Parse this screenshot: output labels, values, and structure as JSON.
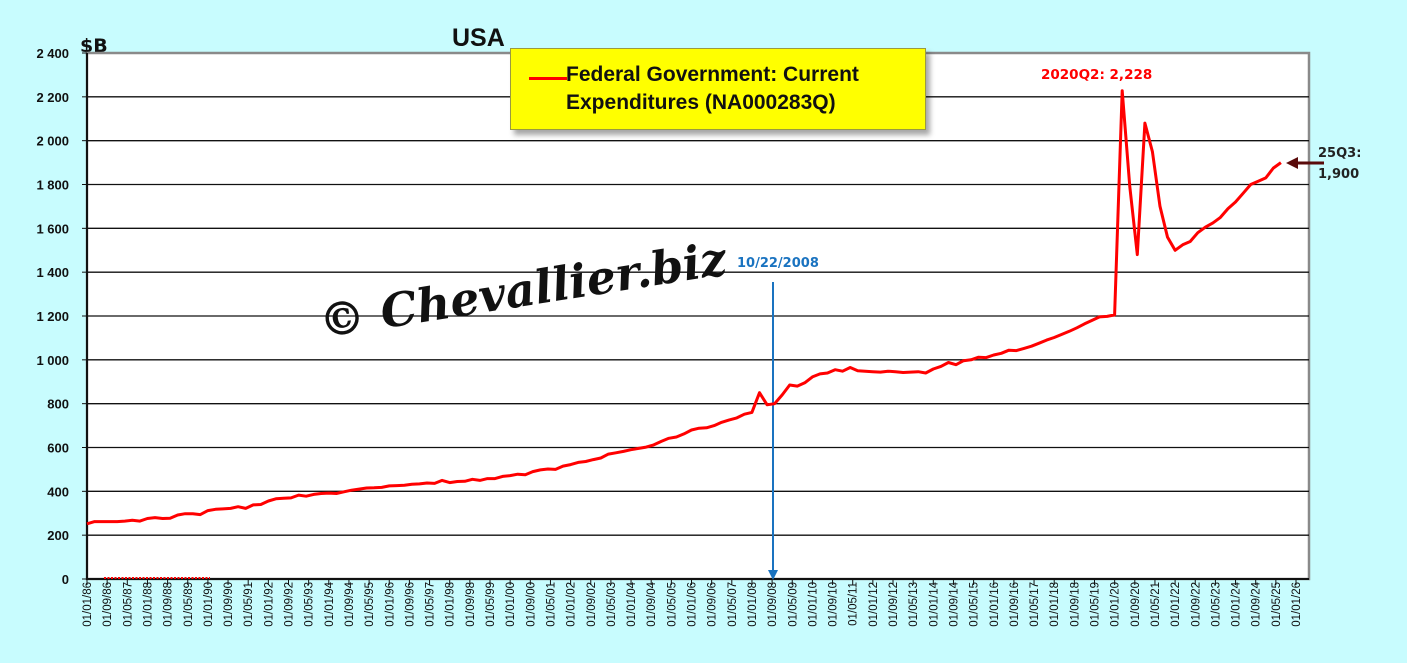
{
  "chart_data": {
    "type": "line",
    "title": "USA",
    "ylabel": "$B",
    "xlabel": "",
    "ylim": [
      0,
      2400
    ],
    "y_ticks": [
      0,
      200,
      400,
      600,
      800,
      1000,
      1200,
      1400,
      1600,
      1800,
      2000,
      2200,
      2400
    ],
    "y_tick_labels": [
      "0",
      "200",
      "400",
      "600",
      "800",
      "1 000",
      "1 200",
      "1 400",
      "1 600",
      "1 800",
      "2 000",
      "2 200",
      "2 400"
    ],
    "grid": true,
    "x_tick_labels": [
      "01/01/86",
      "01/09/86",
      "01/05/87",
      "01/01/88",
      "01/09/88",
      "01/05/89",
      "01/01/90",
      "01/09/90",
      "01/05/91",
      "01/01/92",
      "01/09/92",
      "01/05/93",
      "01/01/94",
      "01/09/94",
      "01/05/95",
      "01/01/96",
      "01/09/96",
      "01/05/97",
      "01/01/98",
      "01/09/98",
      "01/05/99",
      "01/01/00",
      "01/09/00",
      "01/05/01",
      "01/01/02",
      "01/09/02",
      "01/05/03",
      "01/01/04",
      "01/09/04",
      "01/05/05",
      "01/01/06",
      "01/09/06",
      "01/05/07",
      "01/01/08",
      "01/09/08",
      "01/05/09",
      "01/01/10",
      "01/09/10",
      "01/05/11",
      "01/01/12",
      "01/09/12",
      "01/05/13",
      "01/01/14",
      "01/09/14",
      "01/05/15",
      "01/01/16",
      "01/09/16",
      "01/05/17",
      "01/01/18",
      "01/09/18",
      "01/05/19",
      "01/01/20",
      "01/09/20",
      "01/05/21",
      "01/01/22",
      "01/09/22",
      "01/05/23",
      "01/01/24",
      "01/09/24",
      "01/05/25",
      "01/01/26"
    ],
    "legend": {
      "position": "top-center",
      "label": "Federal Government: Current Expenditures (NA000283Q)",
      "color": "#ff0000"
    },
    "series": [
      {
        "name": "Federal Government: Current Expenditures (NA000283Q)",
        "color": "#ff0000",
        "x": [
          "1986Q1",
          "1986Q2",
          "1986Q3",
          "1986Q4",
          "1987Q1",
          "1987Q2",
          "1987Q3",
          "1987Q4",
          "1988Q1",
          "1988Q2",
          "1988Q3",
          "1988Q4",
          "1989Q1",
          "1989Q2",
          "1989Q3",
          "1989Q4",
          "1990Q1",
          "1990Q2",
          "1990Q3",
          "1990Q4",
          "1991Q1",
          "1991Q2",
          "1991Q3",
          "1991Q4",
          "1992Q1",
          "1992Q2",
          "1992Q3",
          "1992Q4",
          "1993Q1",
          "1993Q2",
          "1993Q3",
          "1993Q4",
          "1994Q1",
          "1994Q2",
          "1994Q3",
          "1994Q4",
          "1995Q1",
          "1995Q2",
          "1995Q3",
          "1995Q4",
          "1996Q1",
          "1996Q2",
          "1996Q3",
          "1996Q4",
          "1997Q1",
          "1997Q2",
          "1997Q3",
          "1997Q4",
          "1998Q1",
          "1998Q2",
          "1998Q3",
          "1998Q4",
          "1999Q1",
          "1999Q2",
          "1999Q3",
          "1999Q4",
          "2000Q1",
          "2000Q2",
          "2000Q3",
          "2000Q4",
          "2001Q1",
          "2001Q2",
          "2001Q3",
          "2001Q4",
          "2002Q1",
          "2002Q2",
          "2002Q3",
          "2002Q4",
          "2003Q1",
          "2003Q2",
          "2003Q3",
          "2003Q4",
          "2004Q1",
          "2004Q2",
          "2004Q3",
          "2004Q4",
          "2005Q1",
          "2005Q2",
          "2005Q3",
          "2005Q4",
          "2006Q1",
          "2006Q2",
          "2006Q3",
          "2006Q4",
          "2007Q1",
          "2007Q2",
          "2007Q3",
          "2007Q4",
          "2008Q1",
          "2008Q2",
          "2008Q3",
          "2008Q4",
          "2009Q1",
          "2009Q2",
          "2009Q3",
          "2009Q4",
          "2010Q1",
          "2010Q2",
          "2010Q3",
          "2010Q4",
          "2011Q1",
          "2011Q2",
          "2011Q3",
          "2011Q4",
          "2012Q1",
          "2012Q2",
          "2012Q3",
          "2012Q4",
          "2013Q1",
          "2013Q2",
          "2013Q3",
          "2013Q4",
          "2014Q1",
          "2014Q2",
          "2014Q3",
          "2014Q4",
          "2015Q1",
          "2015Q2",
          "2015Q3",
          "2015Q4",
          "2016Q1",
          "2016Q2",
          "2016Q3",
          "2016Q4",
          "2017Q1",
          "2017Q2",
          "2017Q3",
          "2017Q4",
          "2018Q1",
          "2018Q2",
          "2018Q3",
          "2018Q4",
          "2019Q1",
          "2019Q2",
          "2019Q3",
          "2019Q4",
          "2020Q1",
          "2020Q2",
          "2020Q3",
          "2020Q4",
          "2021Q1",
          "2021Q2",
          "2021Q3",
          "2021Q4",
          "2022Q1",
          "2022Q2",
          "2022Q3",
          "2022Q4",
          "2023Q1",
          "2023Q2",
          "2023Q3",
          "2023Q4",
          "2024Q1",
          "2024Q2",
          "2024Q3",
          "2024Q4",
          "2025Q1",
          "2025Q2",
          "2025Q3"
        ],
        "values": [
          252,
          262,
          262,
          262,
          262,
          264,
          268,
          264,
          276,
          280,
          276,
          277,
          292,
          298,
          298,
          294,
          312,
          318,
          320,
          322,
          330,
          322,
          338,
          340,
          356,
          366,
          368,
          370,
          383,
          378,
          386,
          390,
          392,
          390,
          398,
          405,
          410,
          415,
          416,
          418,
          425,
          426,
          428,
          432,
          434,
          438,
          436,
          450,
          440,
          445,
          446,
          455,
          450,
          458,
          458,
          468,
          472,
          478,
          476,
          490,
          498,
          502,
          500,
          515,
          522,
          532,
          536,
          545,
          552,
          570,
          576,
          582,
          590,
          596,
          602,
          612,
          628,
          642,
          648,
          662,
          680,
          688,
          690,
          700,
          715,
          726,
          735,
          752,
          760,
          850,
          795,
          800,
          840,
          885,
          880,
          895,
          922,
          936,
          940,
          955,
          948,
          965,
          950,
          948,
          946,
          944,
          948,
          946,
          942,
          944,
          946,
          940,
          958,
          970,
          988,
          978,
          996,
          1000,
          1012,
          1010,
          1022,
          1030,
          1044,
          1042,
          1052,
          1062,
          1076,
          1090,
          1102,
          1116,
          1130,
          1146,
          1164,
          1180,
          1196,
          1198,
          1205,
          2228,
          1790,
          1480,
          2080,
          1950,
          1700,
          1560,
          1500,
          1525,
          1540,
          1580,
          1605,
          1625,
          1650,
          1690,
          1720,
          1760,
          1800,
          1815,
          1830,
          1875,
          1900
        ]
      }
    ],
    "annotations": {
      "peak_label": "2020Q2: 2,228",
      "peak_period": "2020Q2",
      "peak_value": 2228,
      "last_label_line1": "25Q3:",
      "last_label_line2": "1,900",
      "last_period": "2025Q3",
      "last_value": 1900,
      "event_label": "10/22/2008",
      "event_color": "#1a73c0",
      "arrow_color": "#5a0a0a"
    },
    "watermark": "© Chevallier.biz"
  }
}
